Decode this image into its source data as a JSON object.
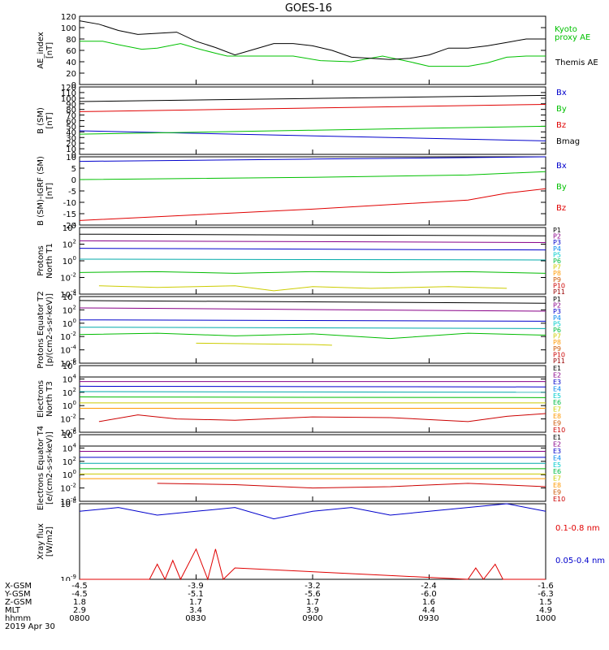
{
  "title": "GOES-16",
  "date_label": "2019 Apr 30",
  "colors": {
    "black": "#000000",
    "red": "#e00000",
    "green": "#00c000",
    "blue": "#0000cc",
    "p_labels": [
      "#000000",
      "#880088",
      "#0000cc",
      "#0088ee",
      "#00cccc",
      "#00bb44",
      "#cccc00",
      "#ff9900",
      "#cc5500",
      "#cc0000",
      "#990000"
    ],
    "e_labels": [
      "#000000",
      "#880088",
      "#0000cc",
      "#0088ee",
      "#00cccc",
      "#00bb44",
      "#cccc00",
      "#ff9900",
      "#cc5500",
      "#cc0000"
    ]
  },
  "footer": {
    "rows": [
      {
        "label": "X-GSM",
        "values": [
          "-4.5",
          "-3.9",
          "-3.2",
          "-2.4",
          "-1.6"
        ]
      },
      {
        "label": "Y-GSM",
        "values": [
          "-4.5",
          "-5.1",
          "-5.6",
          "-6.0",
          "-6.3"
        ]
      },
      {
        "label": "Z-GSM",
        "values": [
          "1.8",
          "1.7",
          "1.7",
          "1.6",
          "1.5"
        ]
      },
      {
        "label": "MLT",
        "values": [
          "2.9",
          "3.4",
          "3.9",
          "4.4",
          "4.9"
        ]
      },
      {
        "label": "hhmm",
        "values": [
          "0800",
          "0830",
          "0900",
          "0930",
          "1000"
        ]
      }
    ]
  },
  "chart_data": [
    {
      "type": "line",
      "ylabel": "AE_index [nT]",
      "ylim": [
        0,
        120
      ],
      "yticks": [
        "0",
        "20",
        "40",
        "60",
        "80",
        "100",
        "120"
      ],
      "x_range": [
        0,
        120
      ],
      "series": [
        {
          "name": "Kyoto proxy AE",
          "legend": [
            "Kyoto",
            "proxy AE"
          ],
          "color": "green",
          "x": [
            0,
            6,
            10,
            16,
            20,
            26,
            31,
            35,
            38,
            42,
            48,
            55,
            62,
            70,
            78,
            85,
            90,
            95,
            100,
            105,
            110,
            115,
            120
          ],
          "values": [
            76,
            76,
            70,
            62,
            64,
            72,
            62,
            55,
            50,
            50,
            50,
            50,
            42,
            40,
            50,
            40,
            32,
            32,
            32,
            38,
            48,
            50,
            50
          ]
        },
        {
          "name": "Themis AE",
          "legend": [
            "Themis AE"
          ],
          "color": "black",
          "x": [
            0,
            5,
            10,
            15,
            20,
            25,
            30,
            35,
            40,
            45,
            50,
            55,
            60,
            65,
            70,
            75,
            80,
            85,
            90,
            95,
            100,
            105,
            110,
            115,
            120
          ],
          "values": [
            112,
            106,
            95,
            88,
            90,
            92,
            76,
            65,
            52,
            62,
            72,
            72,
            68,
            60,
            48,
            46,
            44,
            46,
            52,
            64,
            64,
            68,
            74,
            80,
            80
          ]
        }
      ]
    },
    {
      "type": "line",
      "ylabel": "B (SM) [nT]",
      "ylim": [
        0,
        120
      ],
      "yticks": [
        "0",
        "10",
        "20",
        "30",
        "40",
        "50",
        "60",
        "70",
        "80",
        "90",
        "100",
        "110",
        "120"
      ],
      "series": [
        {
          "name": "Bx",
          "color": "blue",
          "x": [
            0,
            120
          ],
          "values": [
            42,
            24
          ]
        },
        {
          "name": "By",
          "color": "green",
          "x": [
            0,
            120
          ],
          "values": [
            36,
            50
          ]
        },
        {
          "name": "Bz",
          "color": "red",
          "x": [
            0,
            120
          ],
          "values": [
            76,
            89
          ]
        },
        {
          "name": "Bmag",
          "color": "black",
          "x": [
            0,
            120
          ],
          "values": [
            94,
            105
          ]
        }
      ]
    },
    {
      "type": "line",
      "ylabel": "B (SM)-IGRF (SM) [nT]",
      "ylim": [
        -20,
        10
      ],
      "yticks": [
        "-20",
        "-15",
        "-10",
        "-5",
        "0",
        "5",
        "10"
      ],
      "series": [
        {
          "name": "Bx",
          "color": "blue",
          "x": [
            0,
            60,
            120
          ],
          "values": [
            8,
            9,
            10
          ]
        },
        {
          "name": "By",
          "color": "green",
          "x": [
            0,
            60,
            100,
            120
          ],
          "values": [
            0,
            1,
            2,
            3.5
          ]
        },
        {
          "name": "Bz",
          "color": "red",
          "x": [
            0,
            60,
            100,
            110,
            120
          ],
          "values": [
            -18,
            -13,
            -9,
            -6,
            -4
          ]
        }
      ]
    },
    {
      "type": "line",
      "ylabel": "Protons North T1",
      "ylog": true,
      "ylim": [
        -4,
        4
      ],
      "ytick_exps": [
        -4,
        -2,
        0,
        2,
        4
      ],
      "channels": [
        "P1",
        "P2",
        "P3",
        "P4",
        "P5",
        "P6",
        "P7",
        "P8",
        "P9",
        "P10",
        "P11"
      ],
      "series": [
        {
          "name": "P1",
          "color": "#000000",
          "x": [
            0,
            120
          ],
          "values": [
            3.2,
            3.0
          ]
        },
        {
          "name": "P2",
          "color": "#880088",
          "x": [
            0,
            120
          ],
          "values": [
            2.4,
            2.2
          ]
        },
        {
          "name": "P3",
          "color": "#0000cc",
          "x": [
            0,
            120
          ],
          "values": [
            1.5,
            1.3
          ]
        },
        {
          "name": "P4",
          "color": "#00aaaa",
          "x": [
            0,
            120
          ],
          "values": [
            0.2,
            0.1
          ]
        },
        {
          "name": "P5",
          "color": "#00bb00",
          "x": [
            0,
            20,
            40,
            60,
            80,
            100,
            120
          ],
          "values": [
            -1.4,
            -1.3,
            -1.5,
            -1.3,
            -1.4,
            -1.3,
            -1.5
          ]
        },
        {
          "name": "P6",
          "color": "#cccc00",
          "x": [
            5,
            20,
            40,
            50,
            60,
            75,
            95,
            110
          ],
          "values": [
            -3.0,
            -3.2,
            -3.0,
            -3.6,
            -3.1,
            -3.3,
            -3.1,
            -3.3
          ]
        }
      ]
    },
    {
      "type": "line",
      "ylabel": "Protons Equator T2 [p/(cm2-s-sr-keV)]",
      "ylog": true,
      "ylim": [
        -6,
        4
      ],
      "ytick_exps": [
        -6,
        -4,
        -2,
        0,
        2,
        4
      ],
      "channels": [
        "P1",
        "P2",
        "P3",
        "P4",
        "P5",
        "P6",
        "P7",
        "P8",
        "P9",
        "P10",
        "P11"
      ],
      "series": [
        {
          "name": "P1",
          "color": "#000000",
          "x": [
            0,
            120
          ],
          "values": [
            3.4,
            3.0
          ]
        },
        {
          "name": "P2",
          "color": "#880088",
          "x": [
            0,
            120
          ],
          "values": [
            2.3,
            1.8
          ]
        },
        {
          "name": "P3",
          "color": "#0000cc",
          "x": [
            0,
            120
          ],
          "values": [
            0.5,
            0.3
          ]
        },
        {
          "name": "P4",
          "color": "#00aaaa",
          "x": [
            0,
            120
          ],
          "values": [
            -0.6,
            -0.8
          ]
        },
        {
          "name": "P5",
          "color": "#00bb00",
          "x": [
            0,
            20,
            40,
            60,
            80,
            100,
            120
          ],
          "values": [
            -1.7,
            -1.5,
            -1.9,
            -1.6,
            -2.3,
            -1.5,
            -1.8
          ]
        },
        {
          "name": "P6",
          "color": "#cccc00",
          "x": [
            30,
            60,
            65
          ],
          "values": [
            -3.0,
            -3.2,
            -3.3
          ]
        }
      ]
    },
    {
      "type": "line",
      "ylabel": "Electrons North T3",
      "ylog": true,
      "ylim": [
        -4,
        6
      ],
      "ytick_exps": [
        -4,
        -2,
        0,
        2,
        4,
        6
      ],
      "channels": [
        "E1",
        "E2",
        "E3",
        "E4",
        "E5",
        "E6",
        "E7",
        "E8",
        "E9",
        "E10"
      ],
      "series": [
        {
          "name": "E1",
          "color": "#000000",
          "x": [
            0,
            120
          ],
          "values": [
            4.3,
            4.3
          ]
        },
        {
          "name": "E2",
          "color": "#880088",
          "x": [
            0,
            120
          ],
          "values": [
            3.6,
            3.6
          ]
        },
        {
          "name": "E3",
          "color": "#0000cc",
          "x": [
            0,
            120
          ],
          "values": [
            2.9,
            2.8
          ]
        },
        {
          "name": "E4",
          "color": "#00aaaa",
          "x": [
            0,
            120
          ],
          "values": [
            2.1,
            2.0
          ]
        },
        {
          "name": "E5",
          "color": "#00bb00",
          "x": [
            0,
            120
          ],
          "values": [
            1.3,
            1.2
          ]
        },
        {
          "name": "E6",
          "color": "#cccc00",
          "x": [
            0,
            120
          ],
          "values": [
            0.4,
            0.4
          ]
        },
        {
          "name": "E7",
          "color": "#ff9900",
          "x": [
            0,
            120
          ],
          "values": [
            -0.4,
            -0.4
          ]
        },
        {
          "name": "E8",
          "color": "#cc0000",
          "x": [
            5,
            15,
            25,
            40,
            60,
            80,
            100,
            110,
            120
          ],
          "values": [
            -2.4,
            -1.4,
            -2.0,
            -2.2,
            -1.7,
            -1.8,
            -2.4,
            -1.6,
            -1.2
          ]
        }
      ]
    },
    {
      "type": "line",
      "ylabel": "Electrons Equator T4 [e/(cm2-s-sr-keV)]",
      "ylog": true,
      "ylim": [
        -4,
        6
      ],
      "ytick_exps": [
        -4,
        -2,
        0,
        2,
        4,
        6
      ],
      "channels": [
        "E1",
        "E2",
        "E3",
        "E4",
        "E5",
        "E6",
        "E7",
        "E8",
        "E9",
        "E10"
      ],
      "series": [
        {
          "name": "E1",
          "color": "#000000",
          "x": [
            0,
            120
          ],
          "values": [
            4.3,
            4.3
          ]
        },
        {
          "name": "E2",
          "color": "#880088",
          "x": [
            0,
            120
          ],
          "values": [
            3.5,
            3.5
          ]
        },
        {
          "name": "E3",
          "color": "#0000cc",
          "x": [
            0,
            120
          ],
          "values": [
            2.6,
            2.6
          ]
        },
        {
          "name": "E4",
          "color": "#00aaaa",
          "x": [
            0,
            120
          ],
          "values": [
            1.7,
            1.7
          ]
        },
        {
          "name": "E5",
          "color": "#00bb00",
          "x": [
            0,
            120
          ],
          "values": [
            0.9,
            0.9
          ]
        },
        {
          "name": "E6",
          "color": "#cccc00",
          "x": [
            0,
            120
          ],
          "values": [
            0.1,
            0.1
          ]
        },
        {
          "name": "E7",
          "color": "#ff9900",
          "x": [
            0,
            120
          ],
          "values": [
            -0.6,
            -0.6
          ]
        },
        {
          "name": "E8",
          "color": "#cc0000",
          "x": [
            20,
            40,
            60,
            80,
            100,
            120
          ],
          "values": [
            -1.3,
            -1.5,
            -2.0,
            -1.8,
            -1.3,
            -1.8
          ]
        }
      ]
    },
    {
      "type": "line",
      "ylabel": "Xray flux [W/m2]",
      "ylog": true,
      "ylim": [
        -9,
        -8
      ],
      "ytick_exps": [
        -9,
        -8
      ],
      "series": [
        {
          "name": "0.1-0.8 nm",
          "color": "red",
          "x": [
            0,
            18,
            20,
            22,
            24,
            26,
            30,
            33,
            35,
            37,
            40,
            100,
            102,
            104,
            107,
            109,
            111,
            120
          ],
          "values": [
            -9,
            -9,
            -8.8,
            -9,
            -8.75,
            -9,
            -8.6,
            -9,
            -8.6,
            -9,
            -8.85,
            -9,
            -8.85,
            -9,
            -8.8,
            -9,
            -9,
            -9
          ]
        },
        {
          "name": "0.05-0.4 nm",
          "color": "blue",
          "x": [
            0,
            10,
            20,
            30,
            40,
            50,
            60,
            70,
            80,
            90,
            100,
            110,
            120
          ],
          "values": [
            -8.1,
            -8.05,
            -8.15,
            -8.1,
            -8.05,
            -8.2,
            -8.1,
            -8.05,
            -8.15,
            -8.1,
            -8.05,
            -8.0,
            -8.1
          ]
        }
      ]
    }
  ]
}
